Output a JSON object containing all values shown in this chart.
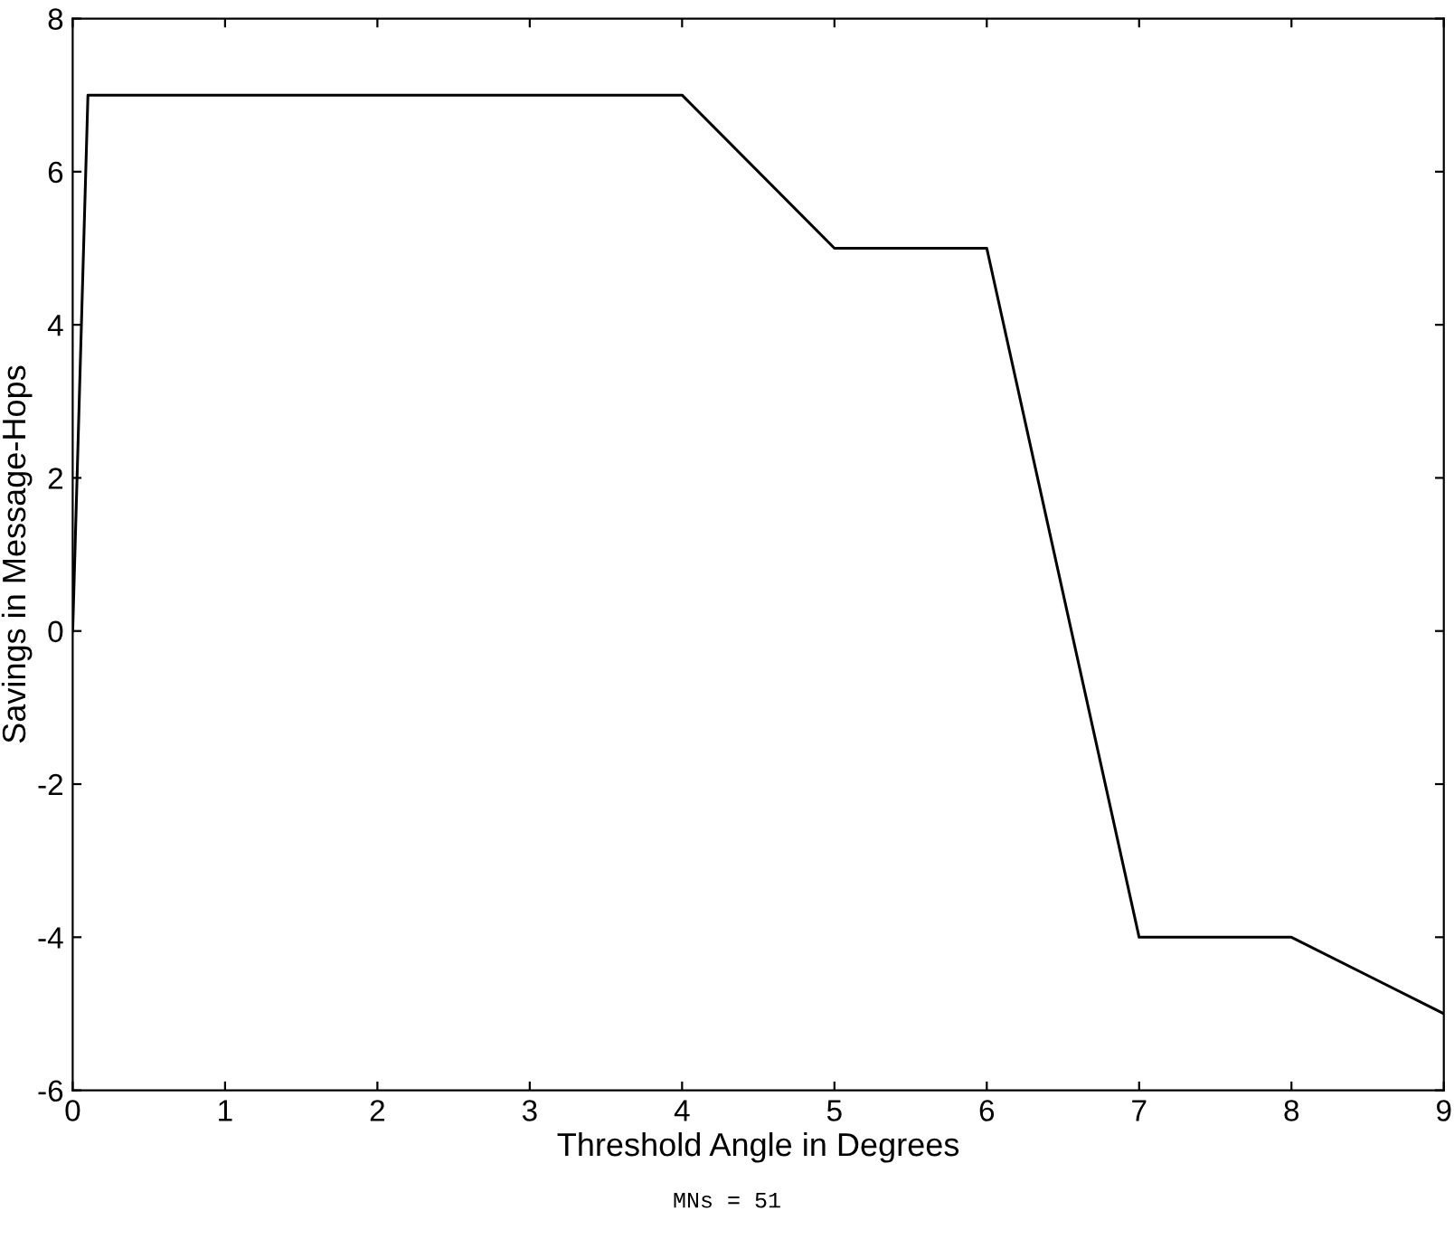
{
  "chart_data": {
    "type": "line",
    "xlabel": "Threshold Angle in Degrees",
    "ylabel": "Savings in Message-Hops",
    "x": [
      0,
      0.1,
      4,
      5,
      6,
      7,
      8,
      9
    ],
    "series": [
      {
        "color": "#000000",
        "values": [
          0,
          7,
          7,
          5,
          5,
          -4,
          -4,
          -5
        ]
      }
    ],
    "xlim": [
      0,
      9
    ],
    "xticks": [
      0,
      1,
      2,
      3,
      4,
      5,
      6,
      7,
      8,
      9
    ],
    "ylim": [
      -6,
      8
    ],
    "yticks": [
      -6,
      -4,
      -2,
      0,
      2,
      4,
      6,
      8
    ],
    "grid": false,
    "legend": false,
    "marker": "none",
    "line_style": "solid",
    "annotations": [
      "MNs = 51"
    ]
  }
}
